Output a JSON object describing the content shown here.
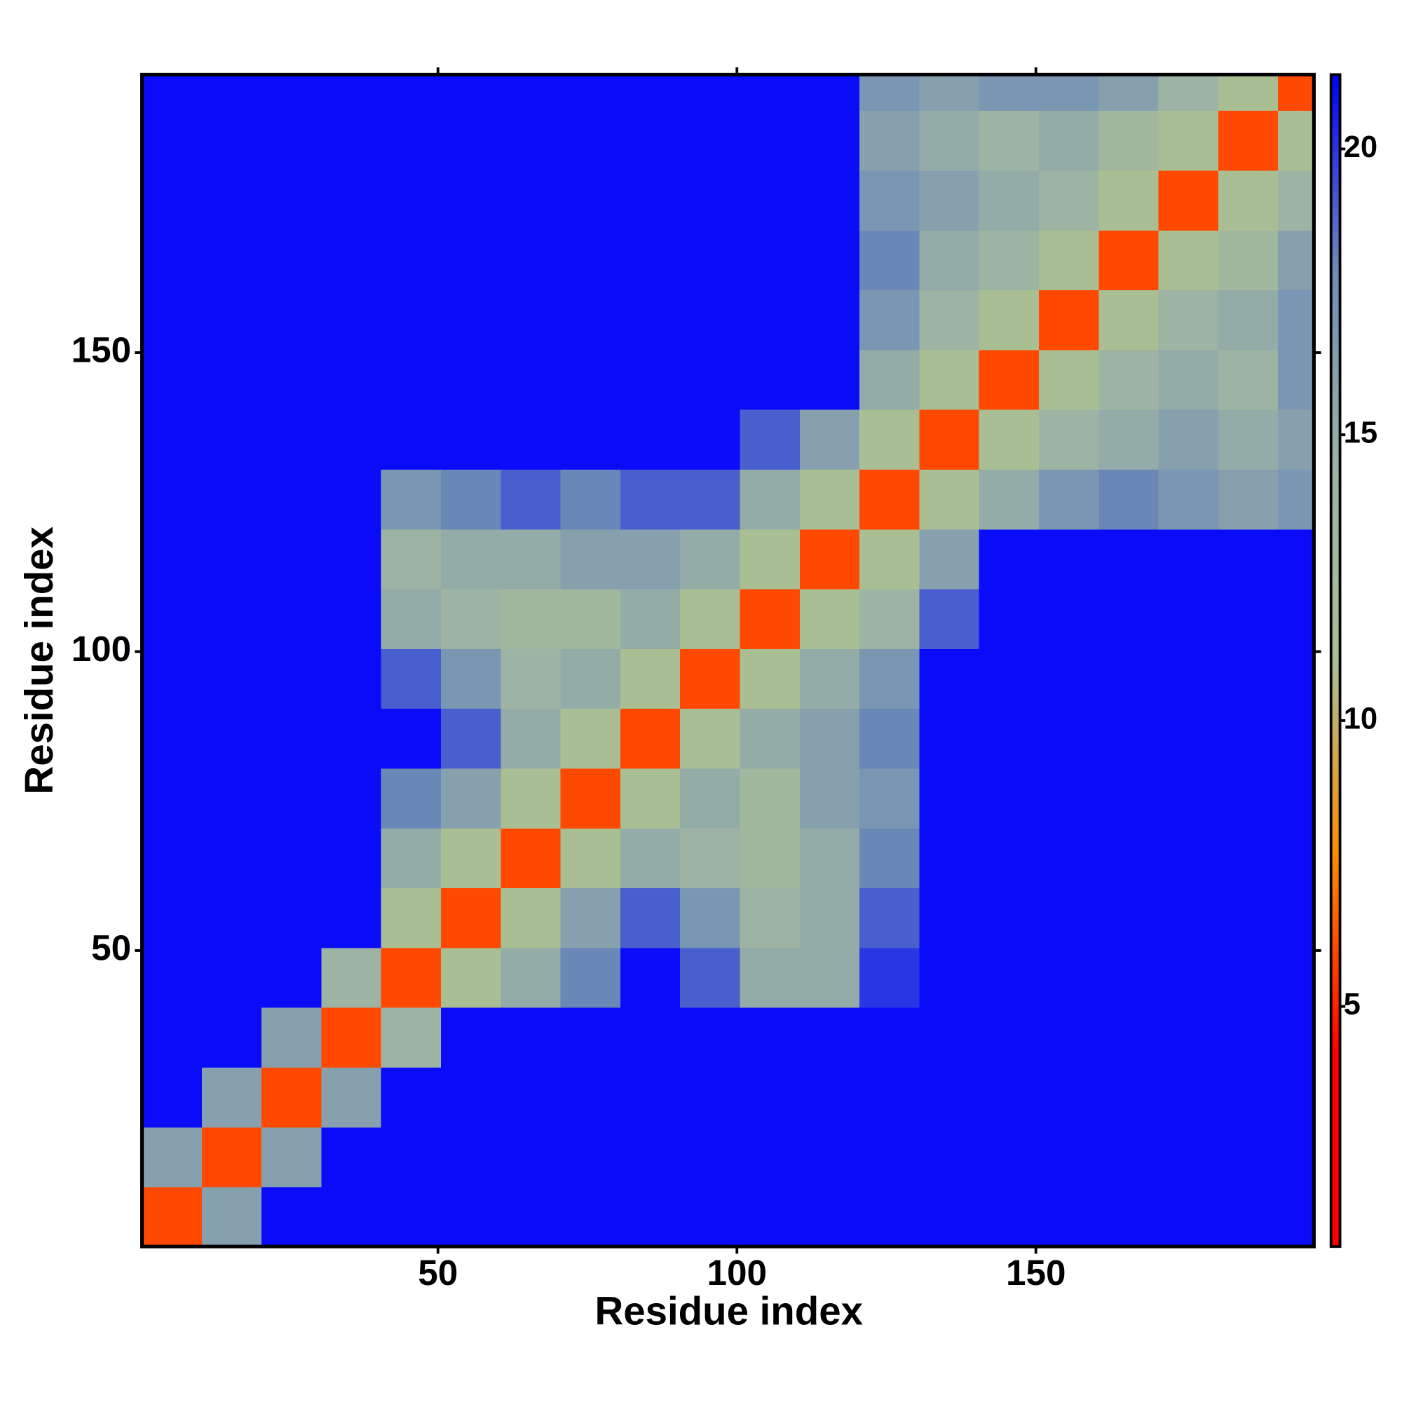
{
  "chart_data": {
    "type": "heatmap",
    "x_label": "Residue index",
    "y_label": "Residue index",
    "x_bins": [
      0.5,
      10.5,
      20.5,
      30.5,
      40.5,
      50.5,
      60.5,
      70.5,
      80.5,
      90.5,
      100.5,
      110.5,
      120.5,
      130.5,
      140.5,
      150.5,
      160.5,
      170.5,
      180.5,
      190.5,
      196.5
    ],
    "y_bins": [
      0.5,
      10.5,
      20.5,
      30.5,
      40.5,
      50.5,
      60.5,
      70.5,
      80.5,
      90.5,
      100.5,
      110.5,
      120.5,
      130.5,
      140.5,
      150.5,
      160.5,
      170.5,
      180.5,
      190.5,
      196.5
    ],
    "values": [
      [
        6,
        16,
        21,
        21,
        21,
        21,
        21,
        21,
        21,
        21,
        21,
        21,
        21,
        21,
        21,
        21,
        21,
        21,
        21,
        21
      ],
      [
        16,
        6,
        16,
        21,
        21,
        21,
        21,
        21,
        21,
        21,
        21,
        21,
        21,
        21,
        21,
        21,
        21,
        21,
        21,
        21
      ],
      [
        21,
        16,
        6,
        16,
        21,
        21,
        21,
        21,
        21,
        21,
        21,
        21,
        21,
        21,
        21,
        21,
        21,
        21,
        21,
        21
      ],
      [
        21,
        21,
        16,
        6,
        14,
        21,
        21,
        21,
        21,
        21,
        21,
        21,
        21,
        21,
        21,
        21,
        21,
        21,
        21,
        21
      ],
      [
        21,
        21,
        21,
        14,
        6,
        11,
        15,
        18,
        21,
        19,
        15,
        15,
        20,
        21,
        21,
        21,
        21,
        21,
        21,
        21
      ],
      [
        21,
        21,
        21,
        21,
        11,
        6,
        11,
        16,
        19,
        17,
        14,
        15,
        19,
        21,
        21,
        21,
        21,
        21,
        21,
        21
      ],
      [
        21,
        21,
        21,
        21,
        15,
        11,
        6,
        11,
        15,
        14,
        13,
        15,
        18,
        21,
        21,
        21,
        21,
        21,
        21,
        21
      ],
      [
        21,
        21,
        21,
        21,
        18,
        16,
        11,
        6,
        11,
        15,
        13,
        16,
        17,
        21,
        21,
        21,
        21,
        21,
        21,
        21
      ],
      [
        21,
        21,
        21,
        21,
        21,
        19,
        15,
        11,
        6,
        11,
        15,
        16,
        18,
        21,
        21,
        21,
        21,
        21,
        21,
        21
      ],
      [
        21,
        21,
        21,
        21,
        19,
        17,
        14,
        15,
        11,
        6,
        11,
        15,
        17,
        21,
        21,
        21,
        21,
        21,
        21,
        21
      ],
      [
        21,
        21,
        21,
        21,
        15,
        14,
        13,
        13,
        15,
        11,
        6,
        11,
        14,
        19,
        21,
        21,
        21,
        21,
        21,
        21
      ],
      [
        21,
        21,
        21,
        21,
        14,
        15,
        15,
        16,
        16,
        15,
        11,
        6,
        11,
        16,
        21,
        21,
        21,
        21,
        21,
        21
      ],
      [
        21,
        21,
        21,
        21,
        17,
        18,
        19,
        18,
        19,
        19,
        15,
        11,
        6,
        11,
        15,
        17,
        18,
        17,
        16,
        17
      ],
      [
        21,
        21,
        21,
        21,
        21,
        21,
        21,
        21,
        21,
        21,
        19,
        16,
        11,
        6,
        11,
        14,
        15,
        16,
        15,
        16
      ],
      [
        21,
        21,
        21,
        21,
        21,
        21,
        21,
        21,
        21,
        21,
        21,
        21,
        15,
        11,
        6,
        11,
        14,
        15,
        14,
        17
      ],
      [
        21,
        21,
        21,
        21,
        21,
        21,
        21,
        21,
        21,
        21,
        21,
        21,
        17,
        14,
        11,
        6,
        11,
        14,
        15,
        17
      ],
      [
        21,
        21,
        21,
        21,
        21,
        21,
        21,
        21,
        21,
        21,
        21,
        21,
        18,
        15,
        14,
        11,
        6,
        11,
        13,
        16
      ],
      [
        21,
        21,
        21,
        21,
        21,
        21,
        21,
        21,
        21,
        21,
        21,
        21,
        17,
        16,
        15,
        14,
        11,
        6,
        11,
        14
      ],
      [
        21,
        21,
        21,
        21,
        21,
        21,
        21,
        21,
        21,
        21,
        21,
        21,
        16,
        15,
        14,
        15,
        13,
        11,
        6,
        11
      ],
      [
        21,
        21,
        21,
        21,
        21,
        21,
        21,
        21,
        21,
        21,
        21,
        21,
        17,
        16,
        17,
        17,
        16,
        14,
        11,
        6
      ]
    ],
    "xlim": [
      0.5,
      196.5
    ],
    "ylim": [
      0.5,
      196.5
    ],
    "xticks": [
      50,
      100,
      150
    ],
    "yticks": [
      50,
      100,
      150
    ],
    "colorbar": {
      "lim": [
        0.8,
        21.3
      ],
      "ticks": [
        5,
        10,
        15,
        20
      ]
    },
    "colors": [
      "#ff0000",
      "#ff0000",
      "#ff8c00",
      "#a9bf95",
      "#9bb2a6",
      "#6d8db6",
      "#0000ff"
    ]
  }
}
